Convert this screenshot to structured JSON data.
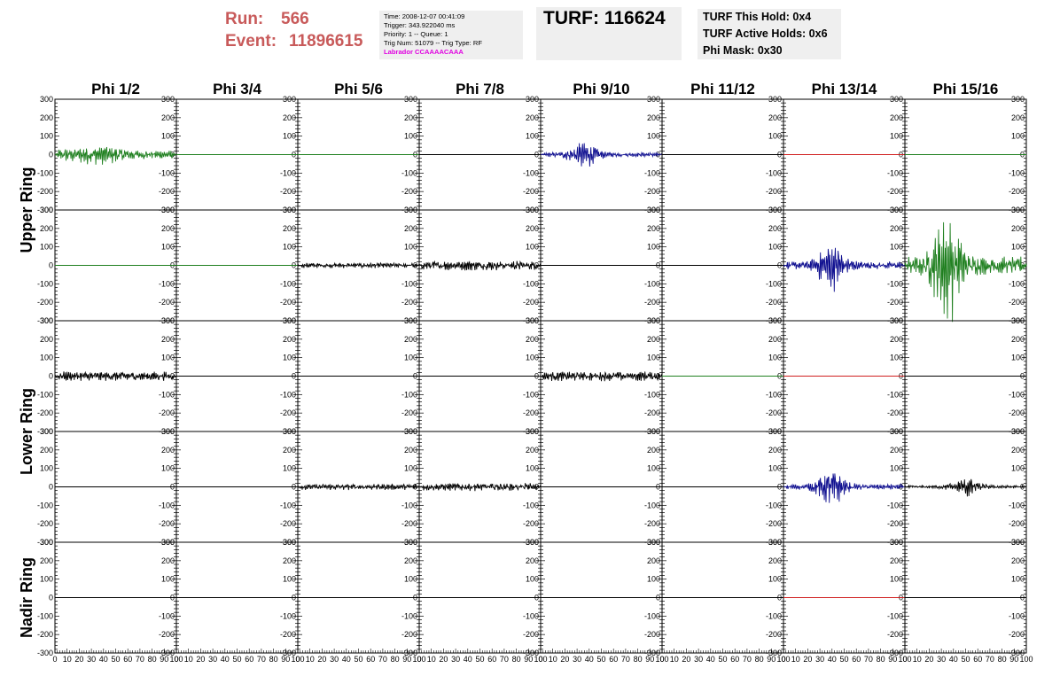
{
  "header": {
    "run_label": "Run:",
    "run_value": "566",
    "event_label": "Event:",
    "event_value": "11896615",
    "info": {
      "time": "Time: 2008-12-07 00:41:09",
      "trigger": "Trigger: 343.922040 ms",
      "priority": "Priority: 1 -- Queue: 1",
      "trig_num": "Trig Num: 51079 -- Trig Type: RF",
      "labrador": "Labrador CCAAAACAAA"
    },
    "turf": "TURF: 116624",
    "turf_this_hold": "TURF This Hold: 0x4",
    "turf_active_holds": "TURF Active Holds: 0x6",
    "phi_mask": "Phi Mask: 0x30"
  },
  "chart_data": {
    "type": "line",
    "columns": [
      "Phi 1/2",
      "Phi 3/4",
      "Phi 5/6",
      "Phi 7/8",
      "Phi 9/10",
      "Phi 11/12",
      "Phi 13/14",
      "Phi 15/16"
    ],
    "ring_labels": [
      {
        "label": "Upper Ring",
        "rows": [
          0,
          1
        ]
      },
      {
        "label": "Lower Ring",
        "rows": [
          2,
          3
        ]
      },
      {
        "label": "Nadir Ring",
        "rows": [
          4
        ]
      }
    ],
    "xlim": [
      0,
      100
    ],
    "ylim": [
      -300,
      300
    ],
    "y_ticks": [
      "300",
      "200",
      "100",
      "0",
      "-100",
      "-200",
      "-300"
    ],
    "x_ticks": [
      "0",
      "10",
      "20",
      "30",
      "40",
      "50",
      "60",
      "70",
      "80",
      "90",
      "100"
    ],
    "colors": {
      "green": "#208020",
      "blue": "#101090",
      "black": "#000000",
      "red": "#d02020"
    },
    "panels": [
      [
        {
          "color": "green",
          "amp": 45,
          "envelope": "wide",
          "center": 35
        },
        {
          "color": "green",
          "amp": 0
        },
        {
          "color": "green",
          "amp": 0
        },
        {
          "color": "black",
          "amp": 0
        },
        {
          "color": "blue",
          "amp": 55,
          "envelope": "burst",
          "center": 35
        },
        {
          "color": "black",
          "amp": 0
        },
        {
          "color": "red",
          "amp": 0
        },
        {
          "color": "green",
          "amp": 0
        }
      ],
      [
        {
          "color": "green",
          "amp": 0
        },
        {
          "color": "green",
          "amp": 0
        },
        {
          "color": "black",
          "amp": 12,
          "envelope": "noise"
        },
        {
          "color": "black",
          "amp": 22,
          "envelope": "noise"
        },
        {
          "color": "black",
          "amp": 0
        },
        {
          "color": "black",
          "amp": 0
        },
        {
          "color": "blue",
          "amp": 100,
          "envelope": "burst",
          "center": 40
        },
        {
          "color": "green",
          "amp": 230,
          "envelope": "burst",
          "center": 35
        }
      ],
      [
        {
          "color": "black",
          "amp": 22,
          "envelope": "noise"
        },
        {
          "color": "black",
          "amp": 0
        },
        {
          "color": "black",
          "amp": 0
        },
        {
          "color": "black",
          "amp": 0
        },
        {
          "color": "black",
          "amp": 22,
          "envelope": "noise"
        },
        {
          "color": "green",
          "amp": 0
        },
        {
          "color": "red",
          "amp": 0
        },
        {
          "color": "black",
          "amp": 0
        }
      ],
      [
        {
          "color": "black",
          "amp": 0
        },
        {
          "color": "black",
          "amp": 0
        },
        {
          "color": "black",
          "amp": 14,
          "envelope": "noise"
        },
        {
          "color": "black",
          "amp": 18,
          "envelope": "noise"
        },
        {
          "color": "black",
          "amp": 0
        },
        {
          "color": "black",
          "amp": 0
        },
        {
          "color": "blue",
          "amp": 70,
          "envelope": "burst",
          "center": 40
        },
        {
          "color": "black",
          "amp": 40,
          "envelope": "burst",
          "center": 50
        }
      ],
      [
        {
          "color": "black",
          "amp": 0
        },
        {
          "color": "black",
          "amp": 0
        },
        {
          "color": "black",
          "amp": 0
        },
        {
          "color": "black",
          "amp": 0
        },
        {
          "color": "black",
          "amp": 0
        },
        {
          "color": "black",
          "amp": 0
        },
        {
          "color": "red",
          "amp": 0
        },
        {
          "color": "black",
          "amp": 0
        }
      ]
    ]
  }
}
